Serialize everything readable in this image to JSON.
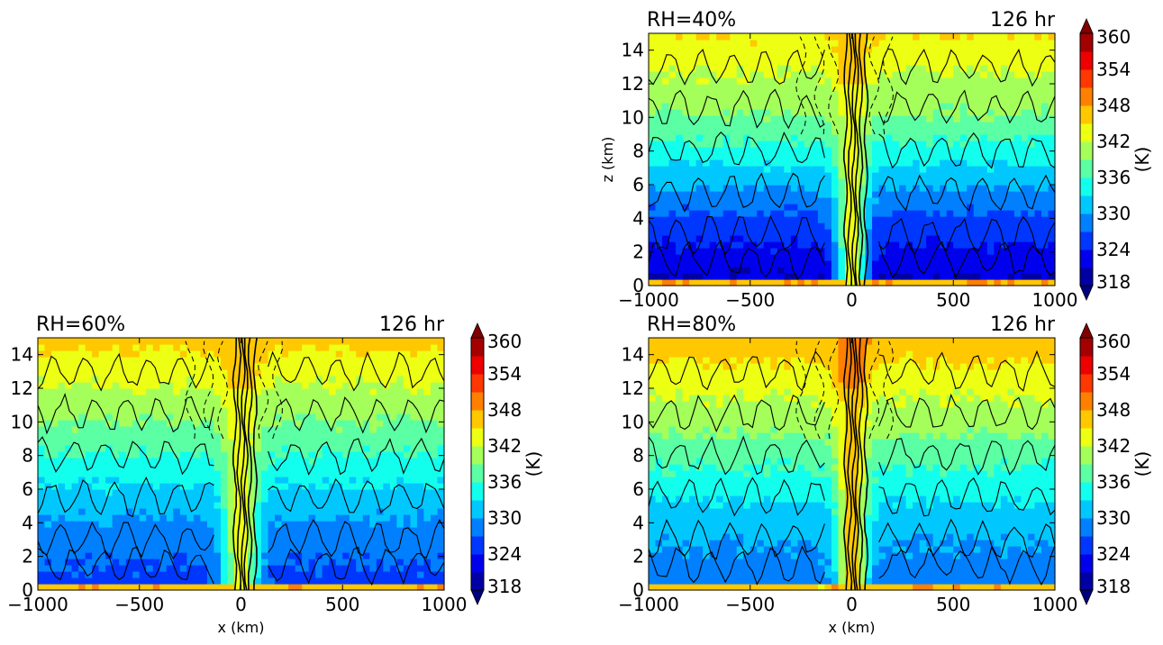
{
  "chart_data": [
    {
      "type": "heatmap",
      "id": "rh40",
      "title_left": "RH=40%",
      "title_right": "126 hr",
      "xlabel": "",
      "ylabel": "z (km)",
      "xlim": [
        -1000,
        1000
      ],
      "ylim": [
        0,
        15
      ],
      "xticks": [
        -1000,
        -500,
        0,
        500,
        1000
      ],
      "yticks": [
        0,
        2,
        4,
        6,
        8,
        10,
        12,
        14
      ],
      "colorbar": {
        "label": "(K)",
        "min": 318,
        "max": 360,
        "ticks": [
          318,
          324,
          330,
          336,
          342,
          348,
          354,
          360
        ]
      },
      "field": {
        "bottom": 350,
        "low": 321,
        "mid": 336,
        "top": 345,
        "core": 344,
        "core_halfwidth_km": 60
      }
    },
    {
      "type": "heatmap",
      "id": "rh60",
      "title_left": "RH=60%",
      "title_right": "126 hr",
      "xlabel": "x (km)",
      "ylabel": "",
      "xlim": [
        -1000,
        1000
      ],
      "ylim": [
        0,
        15
      ],
      "xticks": [
        -1000,
        -500,
        0,
        500,
        1000
      ],
      "yticks": [
        0,
        2,
        4,
        6,
        8,
        10,
        12,
        14
      ],
      "colorbar": {
        "label": "(K)",
        "min": 318,
        "max": 360,
        "ticks": [
          318,
          324,
          330,
          336,
          342,
          348,
          354,
          360
        ]
      },
      "field": {
        "bottom": 350,
        "low": 326,
        "mid": 336,
        "top": 346,
        "core": 344,
        "core_halfwidth_km": 70
      }
    },
    {
      "type": "heatmap",
      "id": "rh80",
      "title_left": "RH=80%",
      "title_right": "126 hr",
      "xlabel": "x (km)",
      "ylabel": "",
      "xlim": [
        -1000,
        1000
      ],
      "ylim": [
        0,
        15
      ],
      "xticks": [
        -1000,
        -500,
        0,
        500,
        1000
      ],
      "yticks": [
        0,
        2,
        4,
        6,
        8,
        10,
        12,
        14
      ],
      "colorbar": {
        "label": "(K)",
        "min": 318,
        "max": 360,
        "ticks": [
          318,
          324,
          330,
          336,
          342,
          348,
          354,
          360
        ]
      },
      "field": {
        "bottom": 350,
        "low": 328,
        "mid": 337,
        "top": 347,
        "core": 347,
        "core_halfwidth_km": 60
      }
    }
  ]
}
